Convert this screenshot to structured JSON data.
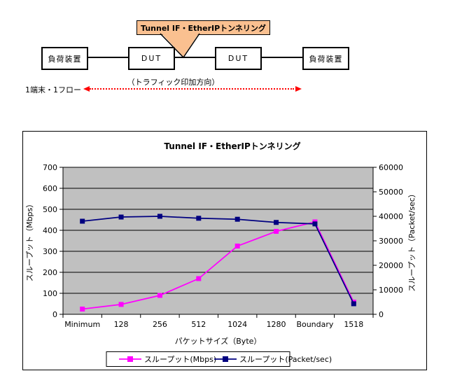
{
  "diagram": {
    "callout_label": "Tunnel IF・EtherIPトンネリング",
    "callout_fill": "#FAC090",
    "nodes": [
      {
        "label": "負荷装置"
      },
      {
        "label": "DUT"
      },
      {
        "label": "DUT"
      },
      {
        "label": "負荷装置"
      }
    ],
    "direction_label": "（トラフィック印加方向）",
    "flow_label": "1端末・1フロー",
    "arrow_color": "#FF0000"
  },
  "chart_data": {
    "type": "line",
    "title": "Tunnel IF・EtherIPトンネリング",
    "categories": [
      "Minimum",
      "128",
      "256",
      "512",
      "1024",
      "1280",
      "Boundary",
      "1518"
    ],
    "xlabel": "パケットサイズ（Byte）",
    "grid": true,
    "plot_bg": "#C0C0C0",
    "legend_position": "bottom",
    "axes": {
      "left": {
        "label": "スループット（Mbps）",
        "min": 0,
        "max": 700,
        "step": 100
      },
      "right": {
        "label": "スループット（Packet/sec）",
        "min": 0,
        "max": 60000,
        "step": 10000
      }
    },
    "series": [
      {
        "name": "スループット(Mbps)",
        "axis": "left",
        "color": "#FF00FF",
        "marker": "square",
        "values": [
          25,
          47,
          90,
          170,
          325,
          395,
          440,
          58
        ]
      },
      {
        "name": "スループット(Packet/sec)",
        "axis": "right",
        "color": "#000080",
        "marker": "square",
        "values": [
          38000,
          39700,
          40000,
          39200,
          38800,
          37500,
          36900,
          4300
        ]
      }
    ]
  }
}
